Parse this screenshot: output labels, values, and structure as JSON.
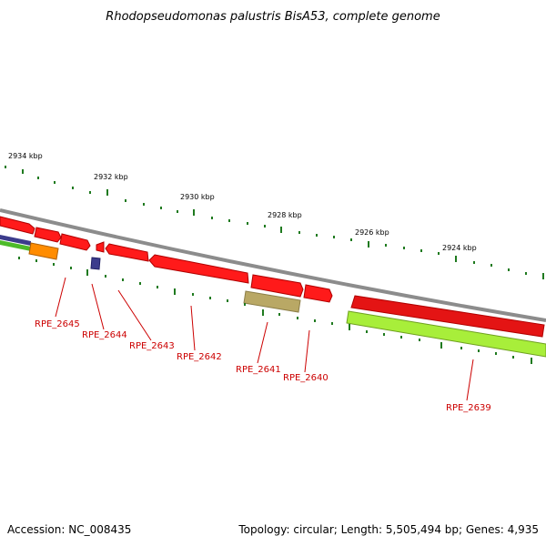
{
  "title": "Rhodopseudomonas palustris BisA53, complete genome",
  "accession_text": "Accession: NC_008435",
  "summary_text": "Topology: circular; Length: 5,505,494 bp; Genes: 4,935",
  "kbp_labels": [
    "2934 kbp",
    "2932 kbp",
    "2930 kbp",
    "2928 kbp",
    "2926 kbp",
    "2924 kbp"
  ],
  "gene_labels": [
    "RPE_2645",
    "RPE_2644",
    "RPE_2643",
    "RPE_2642",
    "RPE_2641",
    "RPE_2640",
    "RPE_2639"
  ],
  "colors": {
    "backbone": "#8c8c8c",
    "gene_red": "#ff1a1a",
    "gene_purple": "#3c3c8c",
    "gene_orange": "#ff8c00",
    "gene_green": "#4dbb2a",
    "gene_khaki": "#b9a865",
    "gene_lime": "#a8ee3a",
    "tick": "#1f7a1f",
    "label": "#cc0000"
  }
}
